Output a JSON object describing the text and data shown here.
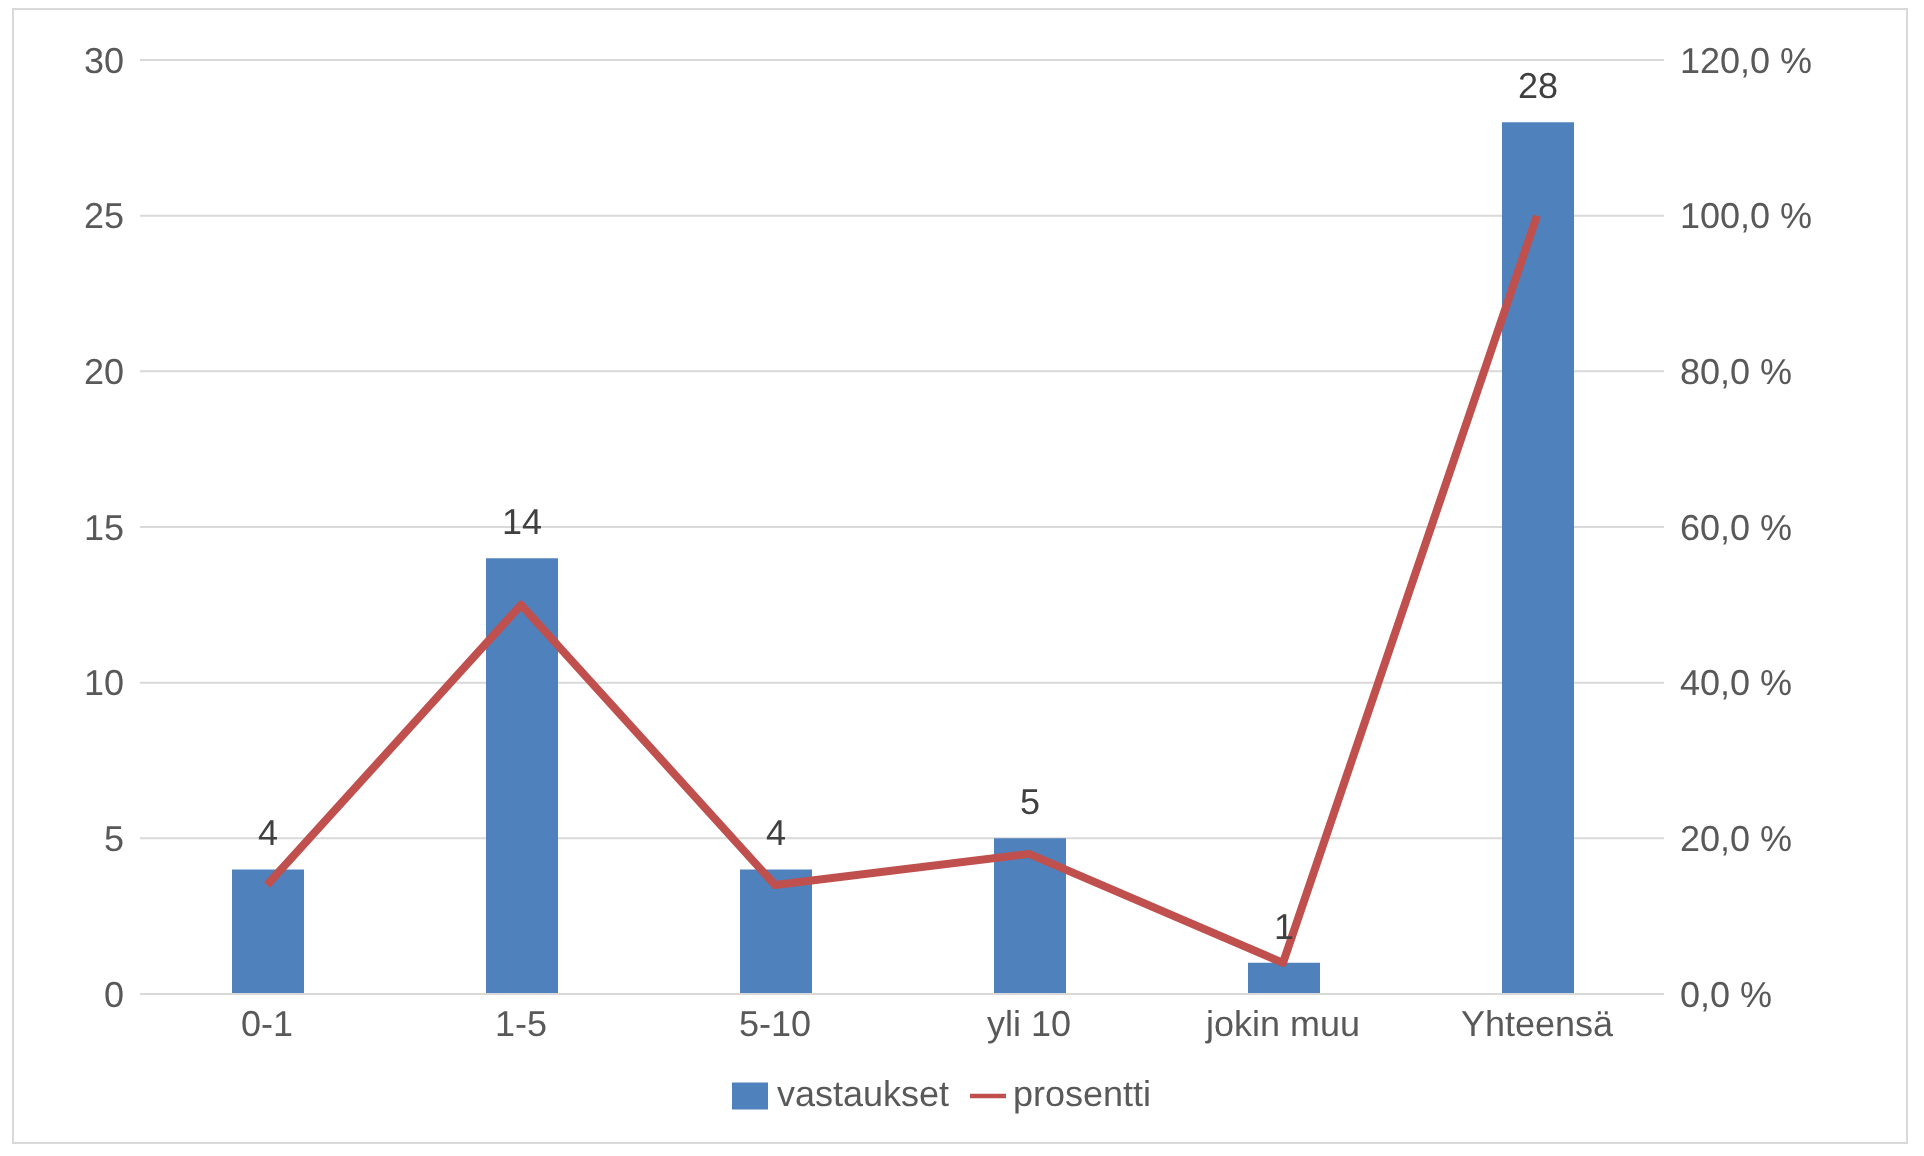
{
  "chart_data": {
    "type": "bar",
    "categories": [
      "0-1",
      "1-5",
      "5-10",
      "yli 10",
      "jokin muu",
      "Yhteensä"
    ],
    "series": [
      {
        "name": "vastaukset",
        "color": "#4f81bd",
        "values": [
          4,
          14,
          4,
          5,
          1,
          28
        ],
        "value_labels": [
          "4",
          "14",
          "4",
          "5",
          "1",
          "28"
        ]
      },
      {
        "name": "prosentti",
        "type": "line",
        "axis": "y2",
        "color": "#c0504d",
        "values": [
          14,
          50,
          14,
          18,
          4,
          100
        ]
      }
    ],
    "ylim": [
      0,
      30
    ],
    "yticks": [
      0,
      5,
      10,
      15,
      20,
      25,
      30
    ],
    "y2lim": [
      0,
      120
    ],
    "y2ticks": [
      {
        "value": 0,
        "label": "0,0 %"
      },
      {
        "value": 20,
        "label": "20,0 %"
      },
      {
        "value": 40,
        "label": "40,0 %"
      },
      {
        "value": 60,
        "label": "60,0 %"
      },
      {
        "value": 80,
        "label": "80,0 %"
      },
      {
        "value": 100,
        "label": "100,0 %"
      },
      {
        "value": 120,
        "label": "120,0 %"
      }
    ],
    "grid": "y",
    "legend": "bottom",
    "marker": "none"
  }
}
